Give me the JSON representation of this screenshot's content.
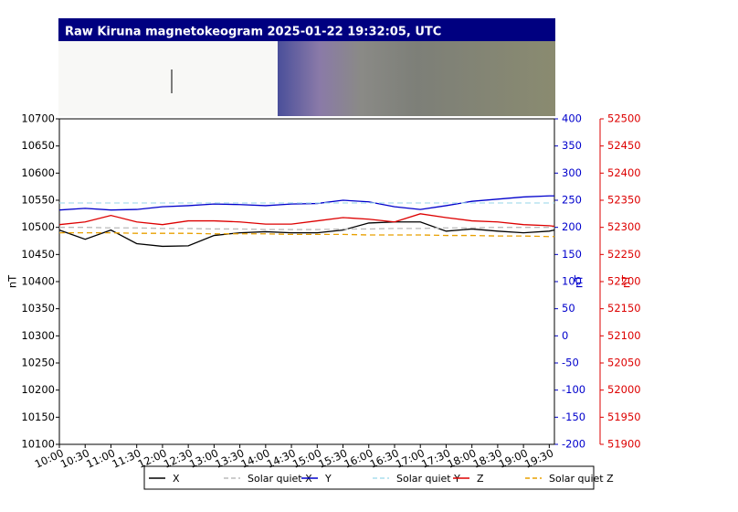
{
  "chart_data": {
    "type": "line",
    "title": "Raw Kiruna magnetokeogram 2025-01-22 19:32:05, UTC",
    "ylabel": "nT",
    "y2label": "nT",
    "y3label": "nT",
    "x": [
      10,
      10.5,
      11,
      11.5,
      12,
      12.5,
      13,
      13.5,
      14,
      14.5,
      15,
      15.5,
      16,
      16.5,
      17,
      17.5,
      18,
      18.5,
      19,
      19.5,
      19.6
    ],
    "xlim": [
      10,
      19.6
    ],
    "xticks": [
      {
        "value": 10,
        "label": "10:00"
      },
      {
        "value": 10.5,
        "label": "10:30"
      },
      {
        "value": 11,
        "label": "11:00"
      },
      {
        "value": 11.5,
        "label": "11:30"
      },
      {
        "value": 12,
        "label": "12:00"
      },
      {
        "value": 12.5,
        "label": "12:30"
      },
      {
        "value": 13,
        "label": "13:00"
      },
      {
        "value": 13.5,
        "label": "13:30"
      },
      {
        "value": 14,
        "label": "14:00"
      },
      {
        "value": 14.5,
        "label": "14:30"
      },
      {
        "value": 15,
        "label": "15:00"
      },
      {
        "value": 15.5,
        "label": "15:30"
      },
      {
        "value": 16,
        "label": "16:00"
      },
      {
        "value": 16.5,
        "label": "16:30"
      },
      {
        "value": 17,
        "label": "17:00"
      },
      {
        "value": 17.5,
        "label": "17:30"
      },
      {
        "value": 18,
        "label": "18:00"
      },
      {
        "value": 18.5,
        "label": "18:30"
      },
      {
        "value": 19,
        "label": "19:00"
      },
      {
        "value": 19.5,
        "label": "19:30"
      }
    ],
    "ylim": [
      10100,
      10700
    ],
    "yticks": [
      10100,
      10150,
      10200,
      10250,
      10300,
      10350,
      10400,
      10450,
      10500,
      10550,
      10600,
      10650,
      10700
    ],
    "y2lim": [
      -200,
      400
    ],
    "y2ticks": [
      -200,
      -150,
      -100,
      -50,
      0,
      50,
      100,
      150,
      200,
      250,
      300,
      350,
      400
    ],
    "y3lim": [
      51900,
      52500
    ],
    "y3ticks": [
      51900,
      51950,
      52000,
      52050,
      52100,
      52150,
      52200,
      52250,
      52300,
      52350,
      52400,
      52450,
      52500
    ],
    "grid": true,
    "series": [
      {
        "name": "X",
        "color": "#000000",
        "axis": "y",
        "values": [
          10495,
          10478,
          10495,
          10470,
          10465,
          10466,
          10485,
          10490,
          10492,
          10490,
          10490,
          10495,
          10508,
          10510,
          10510,
          10493,
          10497,
          10493,
          10490,
          10493,
          10495
        ]
      },
      {
        "name": "Solar quiet X",
        "color": "#bbbbbb",
        "axis": "y",
        "dashed": true,
        "values": [
          10500,
          10500,
          10499,
          10499,
          10498,
          10498,
          10497,
          10497,
          10496,
          10496,
          10496,
          10497,
          10497,
          10498,
          10498,
          10499,
          10499,
          10500,
          10500,
          10500,
          10500
        ]
      },
      {
        "name": "Y",
        "color": "#0000cc",
        "axis": "y2",
        "values": [
          232,
          235,
          232,
          233,
          238,
          240,
          243,
          242,
          240,
          243,
          244,
          250,
          247,
          238,
          233,
          240,
          248,
          252,
          256,
          258,
          258
        ]
      },
      {
        "name": "Solar quiet Y",
        "color": "#aaddee",
        "axis": "y2",
        "dashed": true,
        "values": [
          245,
          245,
          245,
          245,
          245,
          245,
          245,
          245,
          245,
          245,
          245,
          245,
          245,
          245,
          245,
          245,
          245,
          245,
          245,
          245,
          245
        ]
      },
      {
        "name": "Z",
        "color": "#dd0000",
        "axis": "y3",
        "values": [
          52305,
          52310,
          52322,
          52310,
          52305,
          52312,
          52312,
          52310,
          52306,
          52306,
          52312,
          52318,
          52315,
          52310,
          52325,
          52318,
          52312,
          52310,
          52305,
          52303,
          52302
        ]
      },
      {
        "name": "Solar quiet Z",
        "color": "#e8a000",
        "axis": "y3",
        "dashed": true,
        "values": [
          52290,
          52290,
          52290,
          52289,
          52289,
          52289,
          52288,
          52288,
          52288,
          52287,
          52287,
          52287,
          52286,
          52286,
          52286,
          52285,
          52285,
          52284,
          52284,
          52283,
          52283
        ]
      }
    ]
  }
}
